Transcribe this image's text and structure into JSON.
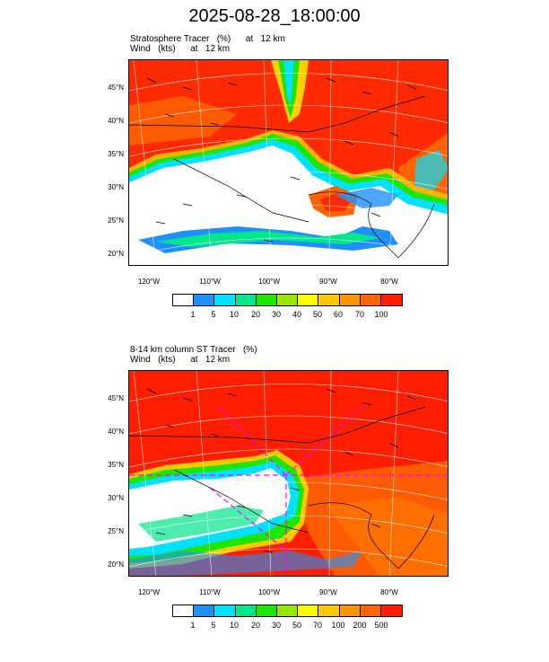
{
  "title": "2025-08-28_18:00:00",
  "panels": [
    {
      "title_line1": "Stratosphere Tracer   (%)      at   12 km",
      "title_line2": "Wind   (kts)      at   12 km",
      "lat_labels": [
        "45°N",
        "40°N",
        "35°N",
        "30°N",
        "25°N",
        "20°N"
      ],
      "lon_labels": [
        "120°W",
        "110°W",
        "100°W",
        "90°W",
        "80°W"
      ],
      "colorbar_colors": [
        "#ffffff",
        "#1e90ff",
        "#00e0ff",
        "#00e68a",
        "#1ee600",
        "#9be600",
        "#ffff00",
        "#ffc800",
        "#ff9600",
        "#ff6400",
        "#ff1e00"
      ],
      "colorbar_labels": [
        "1",
        "5",
        "10",
        "20",
        "30",
        "40",
        "50",
        "60",
        "70",
        "100"
      ]
    },
    {
      "title_line1": "8-14 km column ST Tracer   (%)",
      "title_line2": "Wind   (kts)      at   12 km",
      "lat_labels": [
        "45°N",
        "40°N",
        "35°N",
        "30°N",
        "25°N",
        "20°N"
      ],
      "lon_labels": [
        "120°W",
        "110°W",
        "100°W",
        "90°W",
        "80°W"
      ],
      "colorbar_colors": [
        "#ffffff",
        "#1e90ff",
        "#00e0ff",
        "#00e68a",
        "#1ee600",
        "#9be600",
        "#ffff00",
        "#ffc800",
        "#ff9600",
        "#ff6400",
        "#ff1e00"
      ],
      "colorbar_labels": [
        "1",
        "5",
        "10",
        "20",
        "30",
        "50",
        "70",
        "100",
        "200",
        "500"
      ]
    }
  ]
}
